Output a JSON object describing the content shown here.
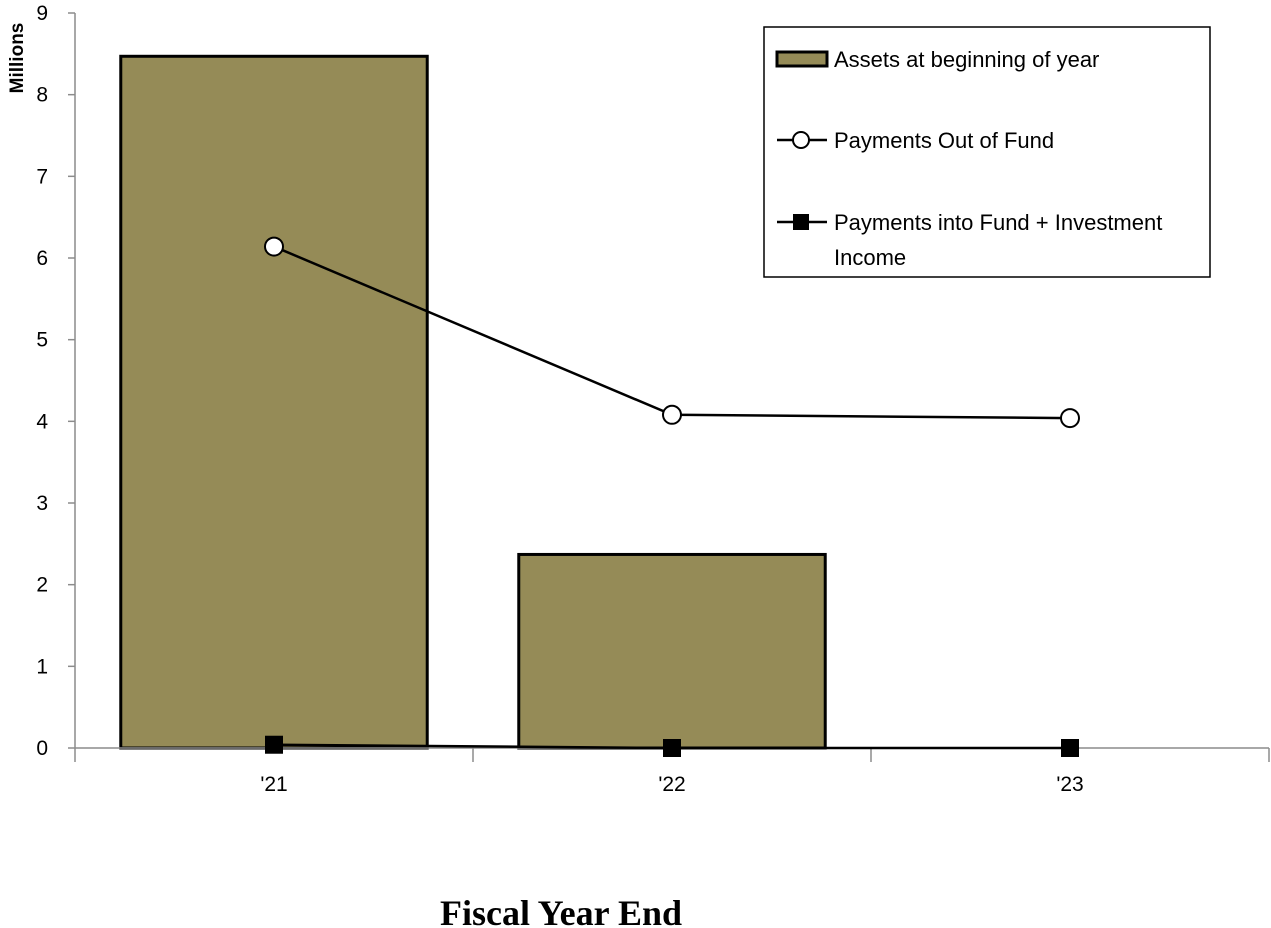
{
  "chart_data": {
    "type": "bar",
    "categories": [
      "'21",
      "'22",
      "'23"
    ],
    "series": [
      {
        "name": "Assets at beginning of year",
        "kind": "bar",
        "values": [
          8.47,
          2.37,
          0
        ],
        "color": "#958b57"
      },
      {
        "name": "Payments Out of Fund",
        "kind": "line",
        "marker": "open-circle",
        "values": [
          6.14,
          4.08,
          4.04
        ]
      },
      {
        "name": "Payments into Fund + Investment Income",
        "kind": "line",
        "marker": "filled-square",
        "values": [
          0.04,
          0.0,
          0.0
        ]
      }
    ],
    "title": "",
    "xlabel": "Fiscal Year End",
    "ylabel": "Millions",
    "ylim": [
      0,
      9
    ],
    "yticks": [
      "0",
      "1",
      "2",
      "3",
      "4",
      "5",
      "6",
      "7",
      "8",
      "9"
    ],
    "grid": false,
    "legend": "top-right",
    "legend_lines": [
      [
        "Assets at beginning of year"
      ],
      [
        "Payments Out of Fund"
      ],
      [
        "Payments into Fund + Investment",
        "Income"
      ]
    ]
  }
}
